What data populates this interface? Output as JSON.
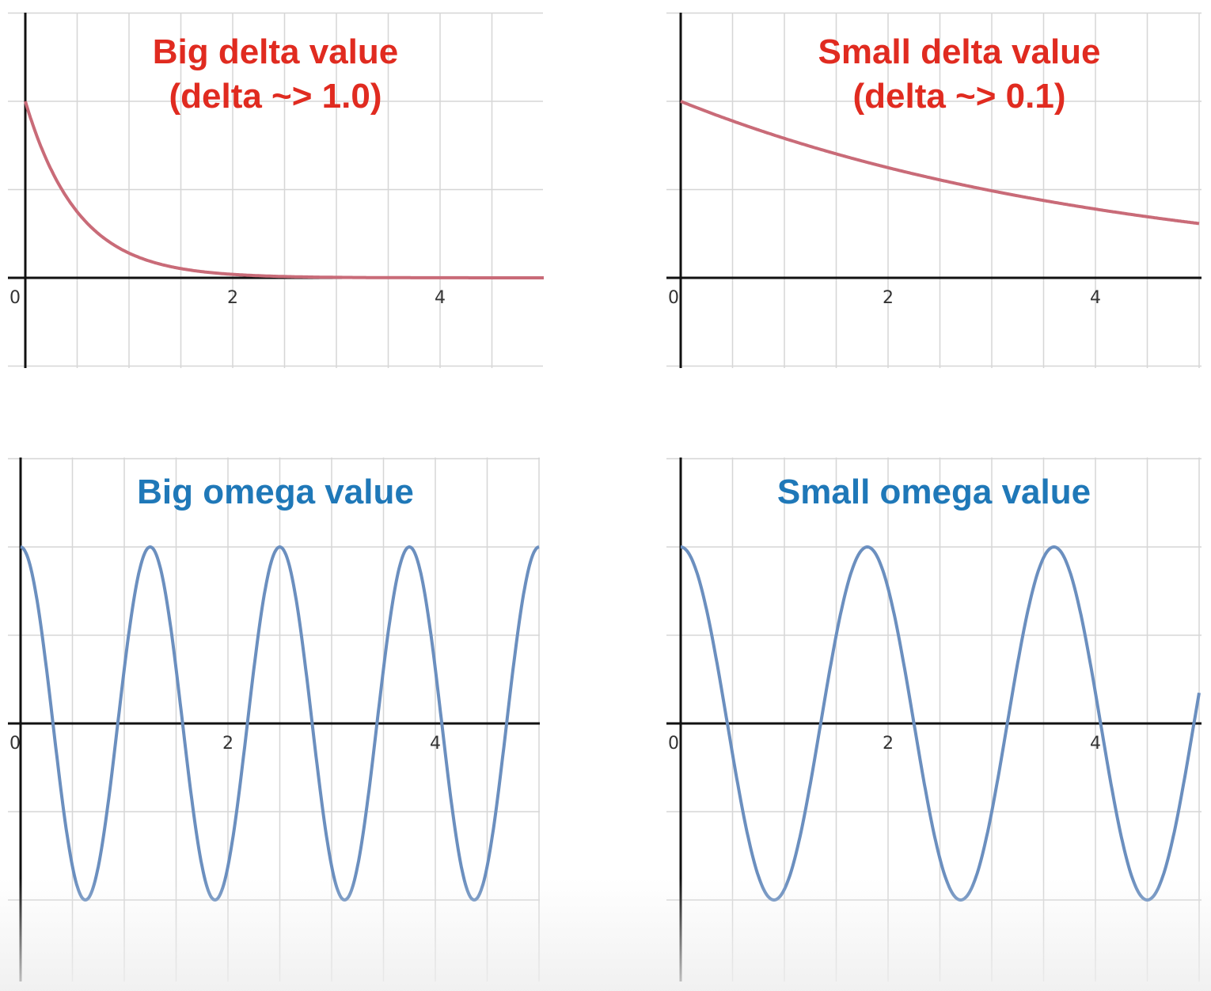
{
  "colors": {
    "delta_title": "#e02b20",
    "omega_title": "#1f78b8",
    "delta_curve": "#c96b78",
    "omega_curve": "#6b8fbf",
    "grid": "#d6d6d6",
    "axis": "#111111"
  },
  "chart_data": [
    {
      "type": "line",
      "title": "Big delta value",
      "subtitle": "(delta ~> 1.0)",
      "x_tick_labels": [
        "0",
        "2",
        "4"
      ],
      "xlim": [
        0,
        5
      ],
      "ylim": [
        -0.5,
        1.0
      ],
      "grid": true,
      "series": [
        {
          "values": [
            [
              0,
              1.0
            ],
            [
              0.25,
              0.61
            ],
            [
              0.5,
              0.37
            ],
            [
              0.75,
              0.22
            ],
            [
              1.0,
              0.14
            ],
            [
              1.25,
              0.08
            ],
            [
              1.5,
              0.05
            ],
            [
              1.75,
              0.03
            ],
            [
              2.0,
              0.02
            ],
            [
              2.5,
              0.01
            ],
            [
              3.0,
              0.0
            ],
            [
              4.0,
              0.0
            ],
            [
              5.0,
              0.0
            ]
          ]
        }
      ]
    },
    {
      "type": "line",
      "title": "Small delta value",
      "subtitle": "(delta ~> 0.1)",
      "x_tick_labels": [
        "0",
        "2",
        "4"
      ],
      "xlim": [
        0,
        5
      ],
      "ylim": [
        -0.5,
        1.0
      ],
      "grid": true,
      "series": [
        {
          "values": [
            [
              0,
              1.0
            ],
            [
              0.5,
              0.89
            ],
            [
              1.0,
              0.79
            ],
            [
              1.5,
              0.71
            ],
            [
              2.0,
              0.63
            ],
            [
              2.5,
              0.56
            ],
            [
              3.0,
              0.5
            ],
            [
              3.5,
              0.44
            ],
            [
              4.0,
              0.4
            ],
            [
              4.5,
              0.35
            ],
            [
              5.0,
              0.31
            ]
          ]
        }
      ]
    },
    {
      "type": "line",
      "title": "Big omega value",
      "x_tick_labels": [
        "0",
        "2",
        "4"
      ],
      "xlim": [
        0,
        5
      ],
      "ylim": [
        -1.5,
        1.5
      ],
      "grid": true,
      "series": [
        {
          "values": [
            [
              0,
              1.0
            ],
            [
              0.31,
              0.0
            ],
            [
              0.62,
              -1.0
            ],
            [
              0.93,
              0.0
            ],
            [
              1.25,
              1.0
            ],
            [
              1.56,
              0.0
            ],
            [
              1.87,
              -1.0
            ],
            [
              2.18,
              0.0
            ],
            [
              2.5,
              1.0
            ],
            [
              2.81,
              0.0
            ],
            [
              3.12,
              -1.0
            ],
            [
              3.43,
              0.0
            ],
            [
              3.75,
              1.0
            ],
            [
              4.06,
              0.0
            ],
            [
              4.37,
              -1.0
            ],
            [
              4.68,
              0.0
            ],
            [
              5.0,
              1.0
            ]
          ]
        }
      ]
    },
    {
      "type": "line",
      "title": "Small omega value",
      "x_tick_labels": [
        "0",
        "2",
        "4"
      ],
      "xlim": [
        0,
        5
      ],
      "ylim": [
        -1.5,
        1.5
      ],
      "grid": true,
      "series": [
        {
          "values": [
            [
              0,
              1.0
            ],
            [
              0.45,
              0.0
            ],
            [
              0.9,
              -1.0
            ],
            [
              1.35,
              0.0
            ],
            [
              1.8,
              1.0
            ],
            [
              2.25,
              0.0
            ],
            [
              2.7,
              -1.0
            ],
            [
              3.15,
              0.0
            ],
            [
              3.6,
              1.0
            ],
            [
              4.05,
              0.0
            ],
            [
              4.5,
              -1.0
            ],
            [
              4.95,
              0.0
            ],
            [
              5.0,
              0.1
            ]
          ]
        }
      ]
    }
  ]
}
